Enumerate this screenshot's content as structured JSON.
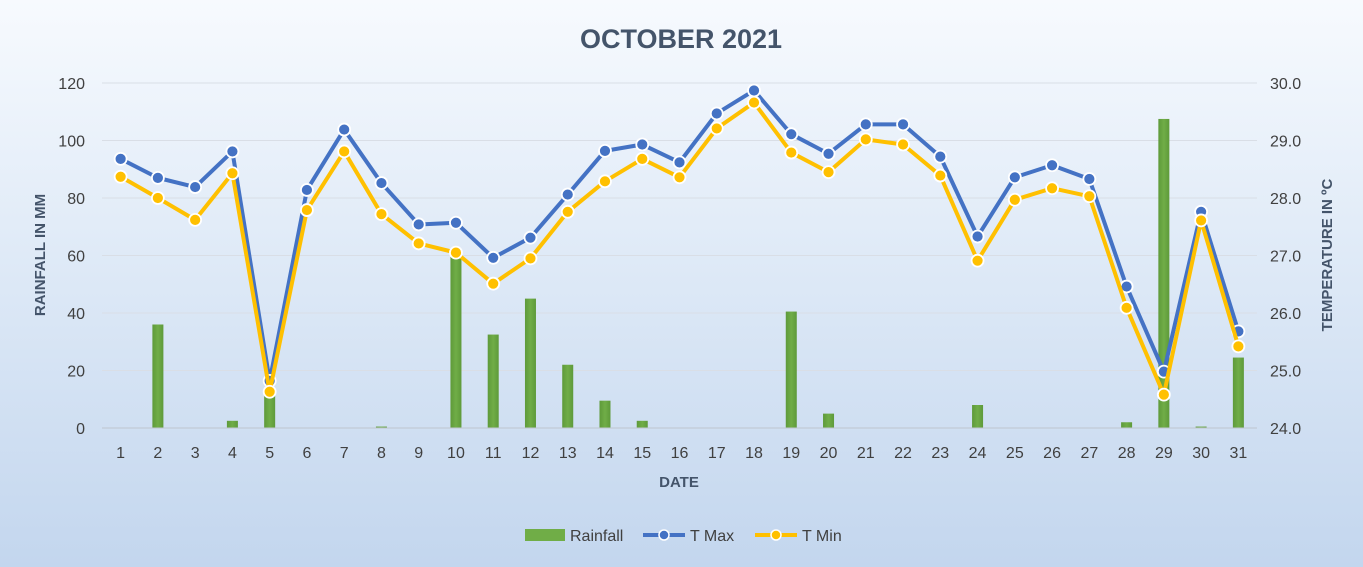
{
  "chart_data": {
    "type": "bar",
    "title": "OCTOBER 2021",
    "xlabel": "DATE",
    "ylabel": "RAINFALL IN MM",
    "y2label": "TEMPERATURE IN ºC",
    "ylim": [
      0,
      120
    ],
    "y_ticks": [
      "0",
      "20",
      "40",
      "60",
      "80",
      "100",
      "120"
    ],
    "y2lim": [
      24.0,
      30.0
    ],
    "y2_ticks": [
      "24.0",
      "25.0",
      "26.0",
      "27.0",
      "28.0",
      "29.0",
      "30.0"
    ],
    "categories": [
      "1",
      "2",
      "3",
      "4",
      "5",
      "6",
      "7",
      "8",
      "9",
      "10",
      "11",
      "12",
      "13",
      "14",
      "15",
      "16",
      "17",
      "18",
      "19",
      "20",
      "21",
      "22",
      "23",
      "24",
      "25",
      "26",
      "27",
      "28",
      "29",
      "30",
      "31"
    ],
    "grid": true,
    "legend_position": "bottom",
    "series": [
      {
        "name": "Rainfall",
        "type": "bar",
        "axis": "left",
        "color": "#70ad47",
        "values": [
          0,
          36,
          0,
          2.5,
          12,
          0,
          0,
          0.5,
          0,
          61,
          32.5,
          45,
          22,
          9.5,
          2.5,
          0,
          0,
          0,
          40.5,
          5,
          0,
          0,
          0,
          8,
          0,
          0,
          0,
          2,
          107.5,
          0.5,
          24.5
        ]
      },
      {
        "name": "T Max",
        "type": "line",
        "axis": "right",
        "color": "#4472c4",
        "values": [
          28.68,
          28.35,
          28.19,
          28.81,
          24.82,
          28.14,
          29.19,
          28.26,
          27.54,
          27.57,
          26.96,
          27.31,
          28.06,
          28.82,
          28.93,
          28.62,
          29.47,
          29.87,
          29.11,
          28.77,
          29.28,
          29.28,
          28.72,
          27.33,
          28.36,
          28.57,
          28.33,
          26.46,
          24.98,
          27.76,
          25.68
        ]
      },
      {
        "name": "T Min",
        "type": "line",
        "axis": "right",
        "color": "#ffc000",
        "values": [
          28.37,
          28.0,
          27.62,
          28.43,
          24.63,
          27.79,
          28.81,
          27.72,
          27.21,
          27.05,
          26.51,
          26.95,
          27.76,
          28.29,
          28.68,
          28.36,
          29.21,
          29.66,
          28.79,
          28.45,
          29.02,
          28.93,
          28.39,
          26.91,
          27.97,
          28.17,
          28.03,
          26.09,
          24.58,
          27.61,
          25.42
        ]
      }
    ]
  }
}
